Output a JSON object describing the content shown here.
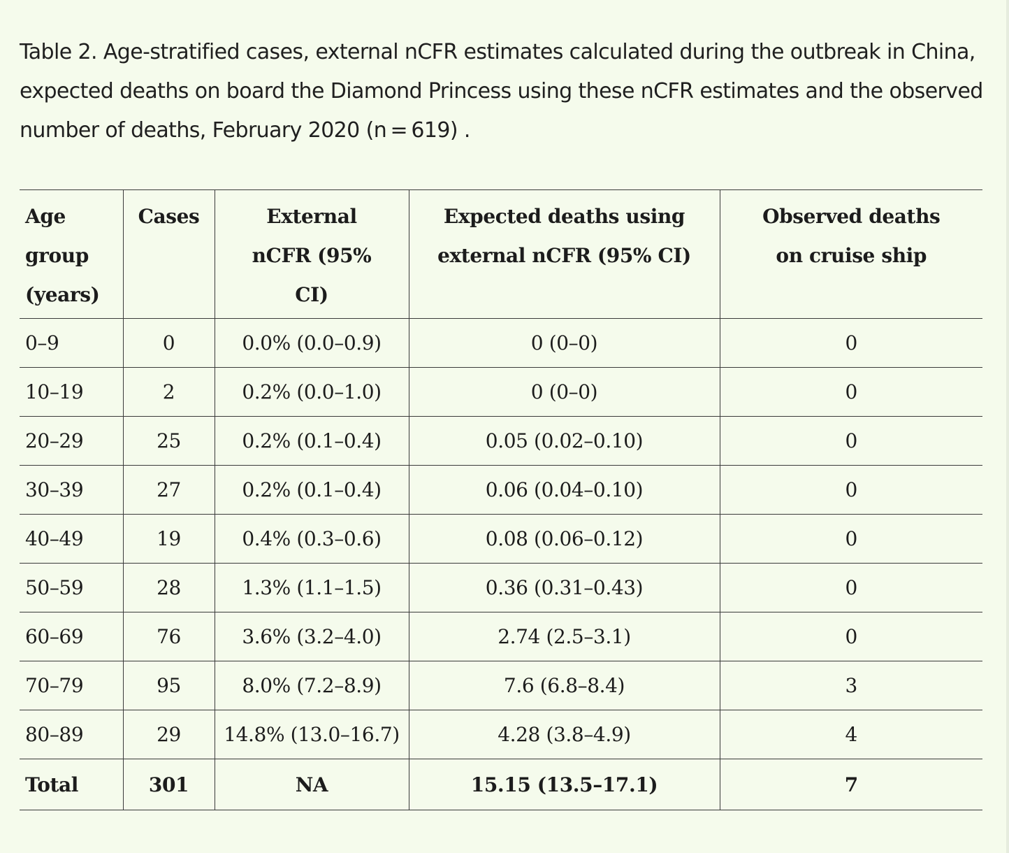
{
  "caption": "Table 2. Age-stratified cases, external nCFR estimates calculated during the outbreak in China, expected deaths on board the Diamond Princess using these nCFR estimates and the observed number of deaths, February 2020 (n = 619) .",
  "table": {
    "headers": [
      "Age group (years)",
      "Cases",
      "External nCFR (95% CI)",
      "Expected deaths using external nCFR (95% CI)",
      "Observed deaths on cruise ship"
    ],
    "rows": [
      [
        "0–9",
        "0",
        "0.0% (0.0–0.9)",
        "0 (0–0)",
        "0"
      ],
      [
        "10–19",
        "2",
        "0.2% (0.0–1.0)",
        "0 (0–0)",
        "0"
      ],
      [
        "20–29",
        "25",
        "0.2% (0.1–0.4)",
        "0.05 (0.02–0.10)",
        "0"
      ],
      [
        "30–39",
        "27",
        "0.2% (0.1–0.4)",
        "0.06 (0.04–0.10)",
        "0"
      ],
      [
        "40–49",
        "19",
        "0.4% (0.3–0.6)",
        "0.08 (0.06–0.12)",
        "0"
      ],
      [
        "50–59",
        "28",
        "1.3% (1.1–1.5)",
        "0.36 (0.31–0.43)",
        "0"
      ],
      [
        "60–69",
        "76",
        "3.6% (3.2–4.0)",
        "2.74 (2.5–3.1)",
        "0"
      ],
      [
        "70–79",
        "95",
        "8.0% (7.2–8.9)",
        "7.6 (6.8–8.4)",
        "3"
      ],
      [
        "80–89",
        "29",
        "14.8% (13.0–16.7)",
        "4.28 (3.8–4.9)",
        "4"
      ]
    ],
    "total": [
      "Total",
      "301",
      "NA",
      "15.15 (13.5–17.1)",
      "7"
    ]
  }
}
